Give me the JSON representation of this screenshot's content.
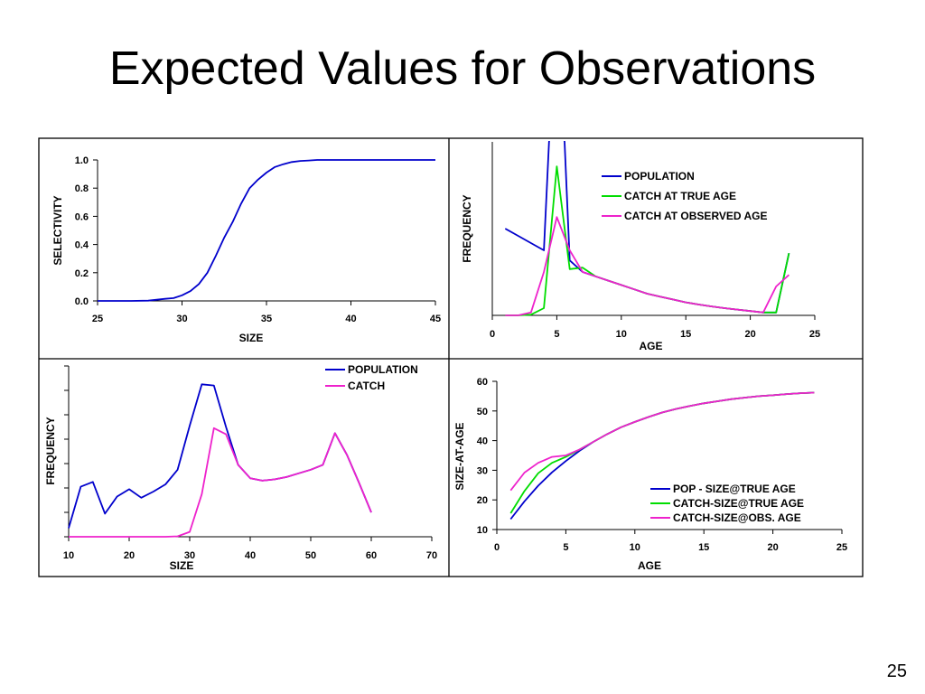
{
  "slide": {
    "title": "Expected Values for Observations",
    "page_number": "25"
  },
  "colors": {
    "population": "#0000cc",
    "catch_true": "#00dd00",
    "catch_observed": "#ee22cc",
    "axis": "#000000",
    "border": "#000000"
  },
  "chart_data": [
    {
      "id": "selectivity",
      "type": "line",
      "xlabel": "SIZE",
      "ylabel": "SELECTIVITY",
      "xlim": [
        25,
        45
      ],
      "ylim": [
        0,
        1
      ],
      "x_ticks": [
        25,
        30,
        35,
        40,
        45
      ],
      "y_ticks": [
        "0.0",
        "0.2",
        "0.4",
        "0.6",
        "0.8",
        "1.0"
      ],
      "y_tick_values": [
        0,
        0.2,
        0.4,
        0.6,
        0.8,
        1.0
      ],
      "legend_position": "none",
      "series": [
        {
          "color_key": "population",
          "x": [
            25,
            26,
            27,
            28,
            29,
            29.5,
            30,
            30.5,
            31,
            31.5,
            32,
            32.5,
            33,
            33.5,
            34,
            34.5,
            35,
            35.5,
            36,
            36.5,
            37,
            37.5,
            38,
            39,
            40,
            41,
            42,
            43,
            44,
            45
          ],
          "y": [
            0,
            0,
            0,
            0.002,
            0.015,
            0.02,
            0.04,
            0.07,
            0.12,
            0.2,
            0.32,
            0.45,
            0.56,
            0.69,
            0.8,
            0.86,
            0.91,
            0.95,
            0.97,
            0.985,
            0.993,
            0.996,
            1.0,
            1.0,
            1.0,
            1.0,
            1.0,
            1.0,
            1.0,
            1.0
          ]
        }
      ]
    },
    {
      "id": "frequency-by-age",
      "type": "line",
      "xlabel": "AGE",
      "ylabel": "FREQUENCY",
      "xlim": [
        0,
        25
      ],
      "ylim": [
        0,
        1.2
      ],
      "x_ticks": [
        0,
        5,
        10,
        15,
        20,
        25
      ],
      "y_ticks": [],
      "legend_position": "top-right",
      "series": [
        {
          "name": "POPULATION",
          "color_key": "population",
          "x": [
            1,
            2,
            3,
            4,
            4.4,
            5,
            5.6,
            6,
            7,
            8,
            9,
            10,
            11,
            12,
            13,
            14,
            15,
            16,
            17,
            18,
            19,
            20,
            21,
            22,
            23
          ],
          "y": [
            0.6,
            0.55,
            0.5,
            0.45,
            1.2,
            1.5,
            1.2,
            0.38,
            0.3,
            0.27,
            0.24,
            0.21,
            0.18,
            0.15,
            0.13,
            0.11,
            0.09,
            0.075,
            0.062,
            0.05,
            0.04,
            0.03,
            0.02,
            0.02,
            0.43
          ]
        },
        {
          "name": "CATCH AT TRUE AGE",
          "color_key": "catch_true",
          "x": [
            1,
            2,
            3,
            4,
            5,
            6,
            7,
            8,
            9,
            10,
            11,
            12,
            13,
            14,
            15,
            16,
            17,
            18,
            19,
            20,
            21,
            22,
            23
          ],
          "y": [
            0,
            0,
            0.005,
            0.05,
            1.03,
            0.32,
            0.33,
            0.27,
            0.24,
            0.21,
            0.18,
            0.15,
            0.13,
            0.11,
            0.09,
            0.075,
            0.062,
            0.05,
            0.04,
            0.03,
            0.02,
            0.02,
            0.43
          ]
        },
        {
          "name": "CATCH AT OBSERVED AGE",
          "color_key": "catch_observed",
          "x": [
            1,
            2,
            3,
            4,
            5,
            6,
            7,
            8,
            9,
            10,
            11,
            12,
            13,
            14,
            15,
            16,
            17,
            18,
            19,
            20,
            21,
            22,
            23
          ],
          "y": [
            0,
            0,
            0.02,
            0.3,
            0.68,
            0.45,
            0.3,
            0.27,
            0.24,
            0.21,
            0.18,
            0.15,
            0.13,
            0.11,
            0.09,
            0.075,
            0.062,
            0.05,
            0.04,
            0.03,
            0.02,
            0.2,
            0.28
          ]
        }
      ]
    },
    {
      "id": "frequency-by-size",
      "type": "line",
      "xlabel": "SIZE",
      "ylabel": "FREQUENCY",
      "xlim": [
        10,
        70
      ],
      "ylim": [
        0,
        7
      ],
      "x_ticks": [
        10,
        20,
        30,
        40,
        50,
        60,
        70
      ],
      "y_ticks": [],
      "y_unlabeled_ticks": [
        0,
        1,
        2,
        3,
        4,
        5,
        6,
        7
      ],
      "legend_position": "top-right",
      "series": [
        {
          "name": "POPULATION",
          "color_key": "population",
          "x": [
            10,
            12,
            14,
            16,
            18,
            20,
            22,
            24,
            26,
            28,
            30,
            32,
            34,
            36,
            38,
            40,
            42,
            44,
            46,
            48,
            50,
            52,
            54,
            56,
            58,
            60
          ],
          "y": [
            0.35,
            2.05,
            2.25,
            0.95,
            1.65,
            1.95,
            1.6,
            1.85,
            2.15,
            2.75,
            4.55,
            6.25,
            6.2,
            4.5,
            2.95,
            2.4,
            2.3,
            2.35,
            2.45,
            2.6,
            2.75,
            2.95,
            4.25,
            3.35,
            2.2,
            1.0
          ]
        },
        {
          "name": "CATCH",
          "color_key": "catch_observed",
          "x": [
            10,
            12,
            14,
            16,
            18,
            20,
            22,
            24,
            26,
            28,
            30,
            32,
            34,
            36,
            38,
            40,
            42,
            44,
            46,
            48,
            50,
            52,
            54,
            56,
            58,
            60
          ],
          "y": [
            0,
            0,
            0,
            0,
            0,
            0,
            0,
            0,
            0,
            0.02,
            0.2,
            1.75,
            4.45,
            4.2,
            2.95,
            2.4,
            2.3,
            2.35,
            2.45,
            2.6,
            2.75,
            2.95,
            4.25,
            3.35,
            2.2,
            1.0
          ]
        }
      ]
    },
    {
      "id": "size-at-age",
      "type": "line",
      "xlabel": "AGE",
      "ylabel": "SIZE-AT-AGE",
      "xlim": [
        0,
        25
      ],
      "ylim": [
        10,
        60
      ],
      "x_ticks": [
        0,
        5,
        10,
        15,
        20,
        25
      ],
      "y_ticks": [
        "10",
        "20",
        "30",
        "40",
        "50",
        "60"
      ],
      "y_tick_values": [
        10,
        20,
        30,
        40,
        50,
        60
      ],
      "legend_position": "bottom-right",
      "series": [
        {
          "name": "POP - SIZE@TRUE AGE",
          "color_key": "population",
          "x": [
            1,
            2,
            3,
            4,
            5,
            6,
            7,
            8,
            9,
            10,
            11,
            12,
            13,
            14,
            15,
            16,
            17,
            18,
            19,
            20,
            21,
            22,
            23
          ],
          "y": [
            13.5,
            19.5,
            24.8,
            29.3,
            33.1,
            36.6,
            39.6,
            42.2,
            44.5,
            46.3,
            48,
            49.5,
            50.7,
            51.7,
            52.6,
            53.3,
            54,
            54.5,
            55,
            55.3,
            55.7,
            56,
            56.2
          ]
        },
        {
          "name": "CATCH-SIZE@TRUE AGE",
          "color_key": "catch_true",
          "x": [
            1,
            2,
            3,
            4,
            5,
            6,
            7,
            8,
            9,
            10,
            11,
            12,
            13,
            14,
            15,
            16,
            17,
            18,
            19,
            20,
            21,
            22,
            23
          ],
          "y": [
            15.5,
            23,
            29,
            32.5,
            34.5,
            37,
            39.6,
            42.2,
            44.5,
            46.3,
            48,
            49.5,
            50.7,
            51.7,
            52.6,
            53.3,
            54,
            54.5,
            55,
            55.3,
            55.7,
            56,
            56.2
          ]
        },
        {
          "name": "CATCH-SIZE@OBS. AGE",
          "color_key": "catch_observed",
          "x": [
            1,
            2,
            3,
            4,
            5,
            6,
            7,
            8,
            9,
            10,
            11,
            12,
            13,
            14,
            15,
            16,
            17,
            18,
            19,
            20,
            21,
            22,
            23
          ],
          "y": [
            23.2,
            29.2,
            32.5,
            34.5,
            35,
            37,
            39.6,
            42.2,
            44.5,
            46.3,
            48,
            49.5,
            50.7,
            51.7,
            52.6,
            53.3,
            54,
            54.5,
            55,
            55.3,
            55.7,
            56,
            56.2
          ]
        }
      ]
    }
  ]
}
